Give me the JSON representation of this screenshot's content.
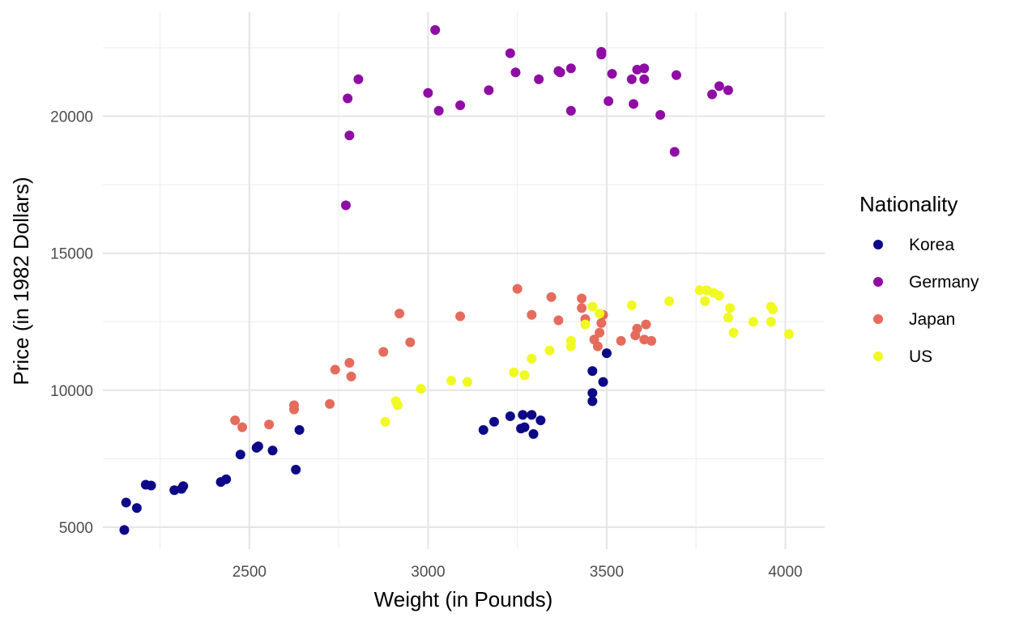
{
  "chart_data": {
    "type": "scatter",
    "xlabel": "Weight (in Pounds)",
    "ylabel": "Price (in 1982 Dollars)",
    "xlim": [
      2090,
      4110
    ],
    "ylim": [
      4200,
      23800
    ],
    "x_ticks": [
      2500,
      3000,
      3500,
      4000
    ],
    "y_ticks": [
      5000,
      10000,
      15000,
      20000
    ],
    "x_tick_labels": [
      "2500",
      "3000",
      "3500",
      "4000"
    ],
    "y_tick_labels": [
      "5000",
      "10000",
      "15000",
      "20000"
    ],
    "grid": true,
    "legend": {
      "title": "Nationality",
      "position": "right"
    },
    "series": [
      {
        "name": "Korea",
        "color": "#0d0887",
        "points": [
          [
            2150,
            4900
          ],
          [
            2155,
            5900
          ],
          [
            2185,
            5700
          ],
          [
            2210,
            6550
          ],
          [
            2225,
            6520
          ],
          [
            2290,
            6350
          ],
          [
            2310,
            6400
          ],
          [
            2315,
            6500
          ],
          [
            2420,
            6650
          ],
          [
            2435,
            6750
          ],
          [
            2475,
            7650
          ],
          [
            2520,
            7900
          ],
          [
            2525,
            7950
          ],
          [
            2565,
            7800
          ],
          [
            2630,
            7100
          ],
          [
            2640,
            8550
          ],
          [
            3155,
            8550
          ],
          [
            3185,
            8850
          ],
          [
            3230,
            9050
          ],
          [
            3260,
            8600
          ],
          [
            3265,
            9100
          ],
          [
            3270,
            8650
          ],
          [
            3290,
            9100
          ],
          [
            3295,
            8400
          ],
          [
            3315,
            8900
          ],
          [
            3460,
            9600
          ],
          [
            3460,
            9900
          ],
          [
            3460,
            10700
          ],
          [
            3490,
            10300
          ],
          [
            3500,
            11350
          ]
        ]
      },
      {
        "name": "Germany",
        "color": "#8f0da4",
        "points": [
          [
            2770,
            16750
          ],
          [
            2775,
            20650
          ],
          [
            2780,
            19300
          ],
          [
            2805,
            21350
          ],
          [
            3000,
            20850
          ],
          [
            3020,
            23150
          ],
          [
            3030,
            20200
          ],
          [
            3090,
            20400
          ],
          [
            3170,
            20950
          ],
          [
            3230,
            22300
          ],
          [
            3245,
            21600
          ],
          [
            3310,
            21350
          ],
          [
            3365,
            21650
          ],
          [
            3370,
            21600
          ],
          [
            3400,
            21750
          ],
          [
            3400,
            20200
          ],
          [
            3485,
            22350
          ],
          [
            3485,
            22250
          ],
          [
            3505,
            20550
          ],
          [
            3515,
            21550
          ],
          [
            3570,
            21350
          ],
          [
            3575,
            20450
          ],
          [
            3585,
            21700
          ],
          [
            3605,
            21750
          ],
          [
            3605,
            21350
          ],
          [
            3650,
            20050
          ],
          [
            3690,
            18700
          ],
          [
            3695,
            21500
          ],
          [
            3795,
            20800
          ],
          [
            3815,
            21100
          ],
          [
            3840,
            20950
          ]
        ]
      },
      {
        "name": "Japan",
        "color": "#e56b5d",
        "points": [
          [
            2460,
            8900
          ],
          [
            2480,
            8650
          ],
          [
            2555,
            8750
          ],
          [
            2625,
            9300
          ],
          [
            2625,
            9450
          ],
          [
            2725,
            9500
          ],
          [
            2740,
            10750
          ],
          [
            2780,
            11000
          ],
          [
            2785,
            10500
          ],
          [
            2875,
            11400
          ],
          [
            2920,
            12800
          ],
          [
            2950,
            11750
          ],
          [
            3090,
            12700
          ],
          [
            3250,
            13700
          ],
          [
            3290,
            12750
          ],
          [
            3345,
            13400
          ],
          [
            3365,
            12550
          ],
          [
            3430,
            13350
          ],
          [
            3430,
            13000
          ],
          [
            3440,
            12600
          ],
          [
            3465,
            11850
          ],
          [
            3475,
            11600
          ],
          [
            3480,
            12100
          ],
          [
            3485,
            12450
          ],
          [
            3490,
            12750
          ],
          [
            3540,
            11800
          ],
          [
            3580,
            12000
          ],
          [
            3585,
            12250
          ],
          [
            3605,
            11850
          ],
          [
            3610,
            12400
          ],
          [
            3625,
            11800
          ]
        ]
      },
      {
        "name": "US",
        "color": "#f0f921",
        "points": [
          [
            2880,
            8850
          ],
          [
            2910,
            9600
          ],
          [
            2915,
            9450
          ],
          [
            2980,
            10050
          ],
          [
            3065,
            10350
          ],
          [
            3110,
            10300
          ],
          [
            3240,
            10650
          ],
          [
            3270,
            10550
          ],
          [
            3290,
            11150
          ],
          [
            3340,
            11450
          ],
          [
            3400,
            11800
          ],
          [
            3400,
            11600
          ],
          [
            3440,
            12400
          ],
          [
            3460,
            13050
          ],
          [
            3480,
            12800
          ],
          [
            3570,
            13100
          ],
          [
            3675,
            13250
          ],
          [
            3760,
            13650
          ],
          [
            3780,
            13650
          ],
          [
            3775,
            13250
          ],
          [
            3800,
            13550
          ],
          [
            3815,
            13450
          ],
          [
            3840,
            12650
          ],
          [
            3845,
            13000
          ],
          [
            3855,
            12100
          ],
          [
            3910,
            12500
          ],
          [
            3960,
            12500
          ],
          [
            3960,
            13050
          ],
          [
            3965,
            12950
          ],
          [
            4010,
            12050
          ]
        ]
      }
    ]
  }
}
